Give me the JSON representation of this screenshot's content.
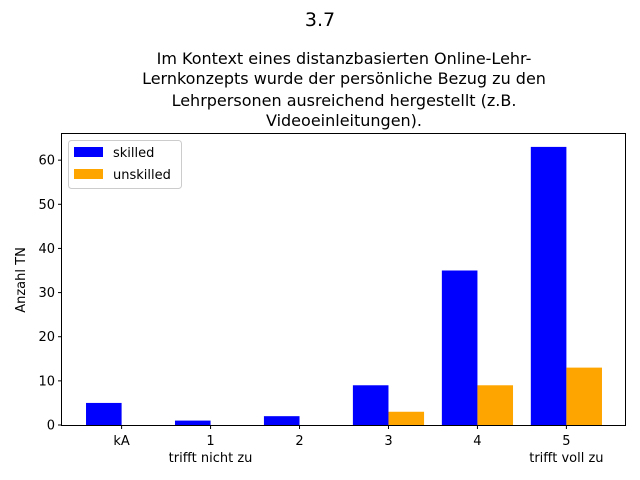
{
  "chart_data": {
    "type": "bar",
    "suptitle": "3.7",
    "title_lines": [
      "Im Kontext eines distanzbasierten Online-Lehr-",
      "Lernkonzepts wurde der persönliche Bezug zu den",
      "Lehrpersonen ausreichend hergestellt (z.B.",
      "Videoeinleitungen)."
    ],
    "categories": [
      "kA",
      "1",
      "2",
      "3",
      "4",
      "5"
    ],
    "category_sublabels": [
      "",
      "trifft nicht zu",
      "",
      "",
      "",
      "trifft voll zu"
    ],
    "series": [
      {
        "name": "skilled",
        "color": "#0000ff",
        "values": [
          5,
          1,
          2,
          9,
          35,
          63
        ]
      },
      {
        "name": "unskilled",
        "color": "#ffa500",
        "values": [
          0,
          0,
          0,
          3,
          9,
          13
        ]
      }
    ],
    "ylabel": "Anzahl TN",
    "xlabel": "",
    "ylim": [
      0,
      66.15
    ],
    "yticks": [
      0,
      10,
      20,
      30,
      40,
      50,
      60
    ],
    "legend_position": "top-left",
    "grid": false
  }
}
